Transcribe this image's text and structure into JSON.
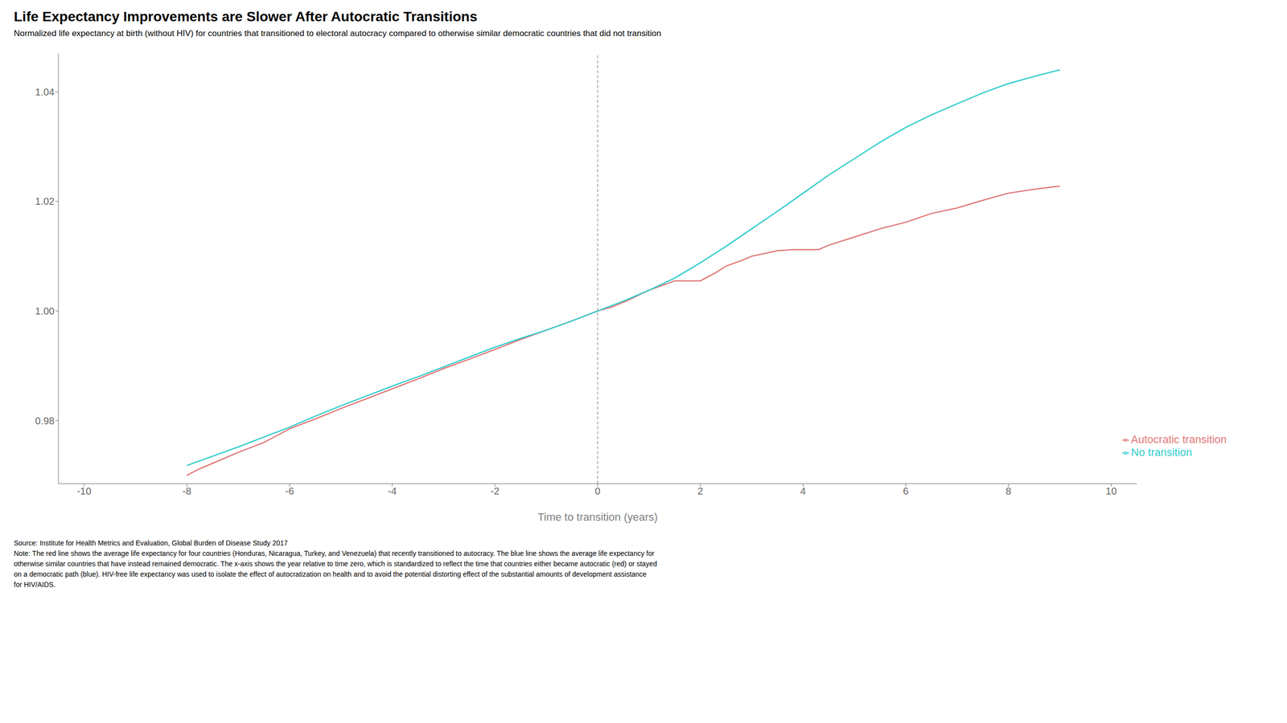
{
  "chart_data": {
    "type": "line",
    "title": "Life Expectancy Improvements are Slower After Autocratic Transitions",
    "subtitle": "Normalized life expectancy at birth (without HIV) for countries that transitioned to electoral autocracy compared to otherwise similar democratic countries that did not transition",
    "xlabel": "Time to transition (years)",
    "annotations": [
      "Source: Institute for Health Metrics and Evaluation, Global Burden of Disease Study 2017\nNote: The red line shows the average life expectancy for four countries (Honduras, Nicaragua, Turkey, and Venezuela) that recently transitioned to autocracy. The blue line shows the average life expectancy for\notherwise similar countries that have instead remained democratic. The x-axis shows the year relative to time zero, which is standardized to reflect the time that countries either became autocratic (red) or stayed\non a democratic path (blue). HIV-free life expectancy was used to isolate the effect of autocratization on health and to avoid the potential distorting effect of the substantial amounts of development assistance\nfor HIV/AIDS."
    ],
    "xlim": [
      -10.5,
      10.5
    ],
    "ylim": [
      0.9685,
      1.047
    ],
    "xticks": [
      -10,
      -8,
      -6,
      -4,
      -2,
      0,
      2,
      4,
      6,
      8,
      10
    ],
    "yticks": [
      0.98,
      {
        "value": 1.0,
        "label": "1.00"
      },
      1.02,
      1.04
    ],
    "grid": false,
    "legend": "lower right",
    "vlines": [
      0
    ],
    "series": [
      {
        "name": "Autocratic transition",
        "color": "#E07878",
        "x": [
          -8.0,
          -7.8,
          -7.5,
          -7.0,
          -6.5,
          -6.2,
          -6.0,
          -5.5,
          -5.0,
          -4.5,
          -4.0,
          -3.5,
          -3.0,
          -2.5,
          -2.0,
          -1.5,
          -1.0,
          -0.5,
          0.0,
          0.3,
          0.6,
          1.0,
          1.3,
          1.5,
          1.8,
          2.0,
          2.3,
          2.5,
          2.8,
          3.0,
          3.5,
          3.8,
          4.0,
          4.3,
          4.5,
          5.0,
          5.5,
          6.0,
          6.5,
          7.0,
          7.5,
          8.0,
          8.5,
          9.0
        ],
        "values": [
          0.97,
          0.971,
          0.9722,
          0.9742,
          0.976,
          0.9775,
          0.9785,
          0.9803,
          0.9822,
          0.984,
          0.9858,
          0.9876,
          0.9895,
          0.9912,
          0.993,
          0.9948,
          0.9965,
          0.9982,
          1.0,
          1.0008,
          1.002,
          1.0038,
          1.0048,
          1.0055,
          1.0055,
          1.0055,
          1.007,
          1.0082,
          1.0092,
          1.01,
          1.011,
          1.0112,
          1.0112,
          1.0112,
          1.012,
          1.0135,
          1.015,
          1.0162,
          1.0178,
          1.0188,
          1.0202,
          1.0215,
          1.0222,
          1.0228
        ]
      },
      {
        "name": "No transition",
        "color": "#30CCCC",
        "x": [
          -8.0,
          -7.5,
          -7.0,
          -6.5,
          -6.0,
          -5.5,
          -5.0,
          -4.5,
          -4.0,
          -3.5,
          -3.0,
          -2.5,
          -2.0,
          -1.5,
          -1.0,
          -0.5,
          0.0,
          0.5,
          1.0,
          1.5,
          2.0,
          2.5,
          3.0,
          3.5,
          4.0,
          4.5,
          5.0,
          5.5,
          6.0,
          6.5,
          7.0,
          7.5,
          8.0,
          8.5,
          9.0
        ],
        "values": [
          0.9718,
          0.9735,
          0.9752,
          0.977,
          0.9788,
          0.9808,
          0.9827,
          0.9845,
          0.9863,
          0.988,
          0.9898,
          0.9916,
          0.9934,
          0.995,
          0.9965,
          0.9982,
          1.0,
          1.0018,
          1.0038,
          1.006,
          1.0088,
          1.0118,
          1.015,
          1.0182,
          1.0215,
          1.0248,
          1.0278,
          1.0308,
          1.0335,
          1.0358,
          1.0378,
          1.0398,
          1.0415,
          1.0428,
          1.044
        ]
      }
    ]
  }
}
